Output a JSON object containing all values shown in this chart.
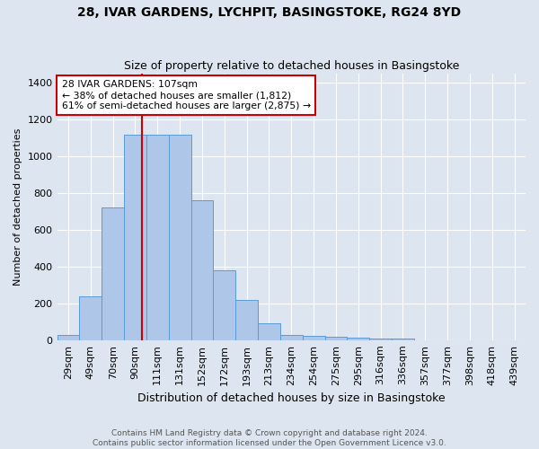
{
  "title1": "28, IVAR GARDENS, LYCHPIT, BASINGSTOKE, RG24 8YD",
  "title2": "Size of property relative to detached houses in Basingstoke",
  "xlabel": "Distribution of detached houses by size in Basingstoke",
  "ylabel": "Number of detached properties",
  "categories": [
    "29sqm",
    "49sqm",
    "70sqm",
    "90sqm",
    "111sqm",
    "131sqm",
    "152sqm",
    "172sqm",
    "193sqm",
    "213sqm",
    "234sqm",
    "254sqm",
    "275sqm",
    "295sqm",
    "316sqm",
    "336sqm",
    "357sqm",
    "377sqm",
    "398sqm",
    "418sqm",
    "439sqm"
  ],
  "values": [
    30,
    240,
    720,
    1120,
    1120,
    1120,
    760,
    380,
    220,
    90,
    30,
    25,
    20,
    15,
    10,
    10,
    0,
    0,
    0,
    0,
    0
  ],
  "bar_color": "#aec6e8",
  "bar_edge_color": "#5b9bd5",
  "bg_color": "#dde6f0",
  "grid_color": "#ffffff",
  "property_label": "28 IVAR GARDENS: 107sqm",
  "annotation_line1": "← 38% of detached houses are smaller (1,812)",
  "annotation_line2": "61% of semi-detached houses are larger (2,875) →",
  "annotation_box_color": "#ffffff",
  "annotation_box_edge": "#cc0000",
  "vline_color": "#cc0000",
  "ylim": [
    0,
    1450
  ],
  "yticks": [
    0,
    200,
    400,
    600,
    800,
    1000,
    1200,
    1400
  ],
  "footer1": "Contains HM Land Registry data © Crown copyright and database right 2024.",
  "footer2": "Contains public sector information licensed under the Open Government Licence v3.0.",
  "title1_fontsize": 10,
  "title2_fontsize": 9,
  "xlabel_fontsize": 9,
  "ylabel_fontsize": 8,
  "tick_fontsize": 8,
  "footer_fontsize": 6.5
}
